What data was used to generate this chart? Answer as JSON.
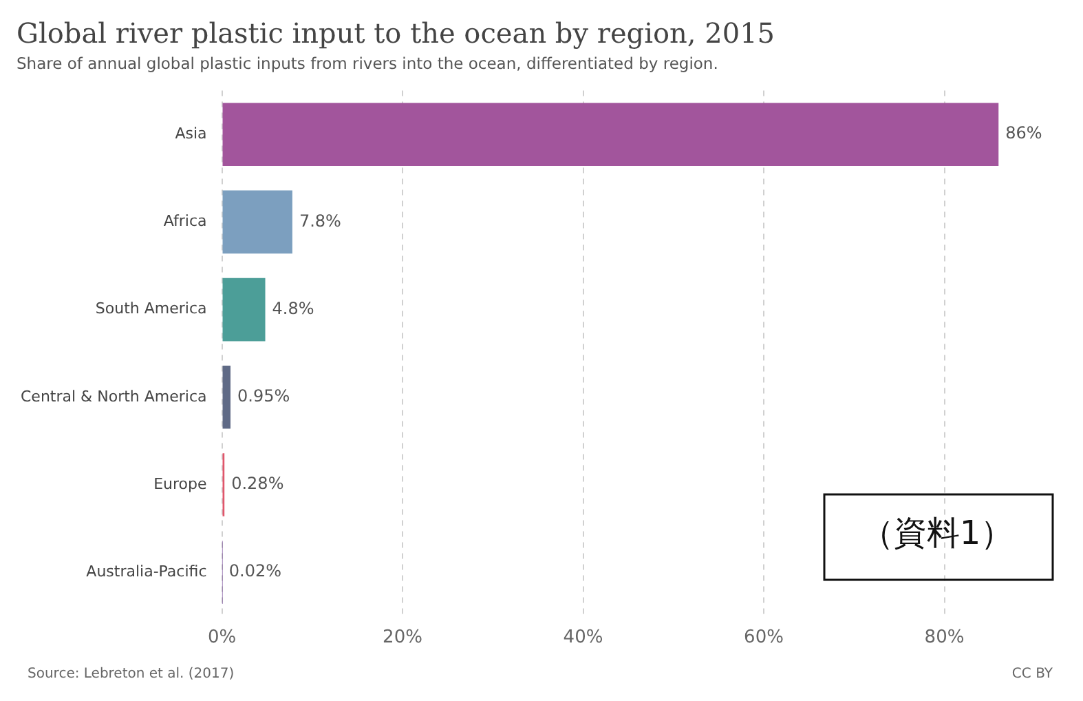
{
  "chart_data": {
    "type": "bar",
    "orientation": "horizontal",
    "title": "Global river plastic input to the ocean by region, 2015",
    "subtitle": "Share of annual global plastic inputs from rivers into the ocean, differentiated by region.",
    "categories": [
      "Asia",
      "Africa",
      "South America",
      "Central & North America",
      "Europe",
      "Australia-Pacific"
    ],
    "values": [
      86,
      7.8,
      4.8,
      0.95,
      0.28,
      0.02
    ],
    "value_labels": [
      "86%",
      "7.8%",
      "4.8%",
      "0.95%",
      "0.28%",
      "0.02%"
    ],
    "colors": [
      "#a2559c",
      "#7c9fbf",
      "#4c9e98",
      "#5f6a86",
      "#e0566b",
      "#6d3e91"
    ],
    "xlim": [
      0,
      92
    ],
    "xticks": [
      {
        "value": 0,
        "label": "0%"
      },
      {
        "value": 20,
        "label": "20%"
      },
      {
        "value": 40,
        "label": "40%"
      },
      {
        "value": 60,
        "label": "60%"
      },
      {
        "value": 80,
        "label": "80%"
      }
    ],
    "grid": "x",
    "annotations": [
      "Source: Lebreton et al. (2017)",
      "CC BY",
      "（資料1）"
    ]
  }
}
